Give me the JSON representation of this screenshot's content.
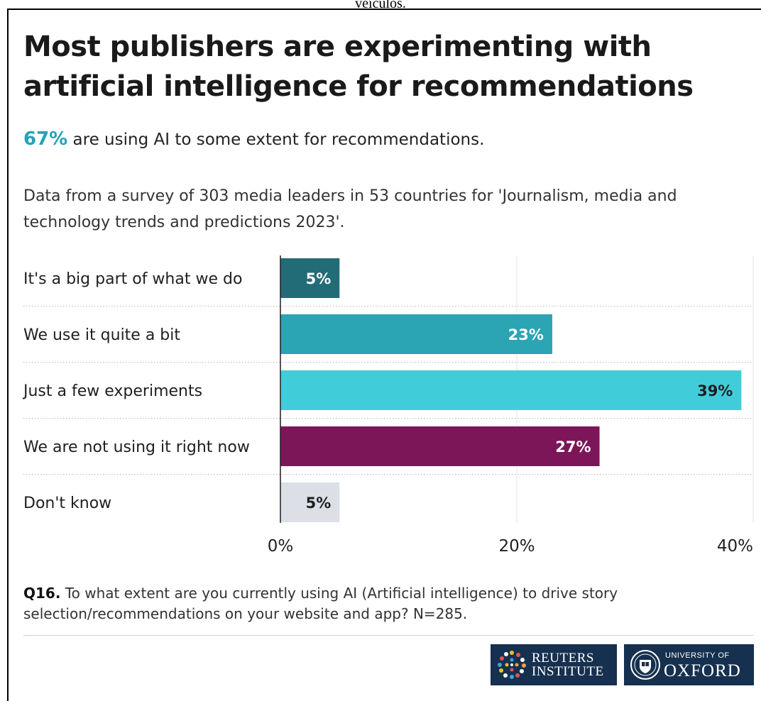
{
  "caption_top": "veículos.",
  "title": "Most publishers are experimenting with artificial intelligence for recommendations",
  "subtitle": {
    "highlight": "67%",
    "text": " are using AI to some extent for recommendations."
  },
  "description": "Data from a survey of 303 media leaders in 53 countries for 'Journalism, media and technology trends and predictions 2023'.",
  "chart_data": {
    "type": "bar",
    "orientation": "horizontal",
    "categories": [
      "It's a big part of what we do",
      "We use it quite a bit",
      "Just a few experiments",
      "We are not using it right now",
      "Don't know"
    ],
    "values": [
      5,
      23,
      39,
      27,
      5
    ],
    "data_labels": [
      "5%",
      "23%",
      "39%",
      "27%",
      "5%"
    ],
    "colors": [
      "#226c77",
      "#2ba4b4",
      "#40cdd9",
      "#7d1658",
      "#dcdfe6"
    ],
    "label_colors": [
      "#ffffff",
      "#ffffff",
      "#1f1f1f",
      "#ffffff",
      "#1f1f1f"
    ],
    "xlim": [
      0,
      40
    ],
    "xticks": [
      0,
      20,
      40
    ],
    "xtick_labels": [
      "0%",
      "20%",
      "40%"
    ],
    "grid": true
  },
  "footnote": {
    "label": "Q16.",
    "text": " To what extent are you currently using AI (Artificial intelligence) to drive story selection/recommendations on your website and app? N=285."
  },
  "logos": {
    "reuters": {
      "line1": "REUTERS",
      "line2": "INSTITUTE"
    },
    "oxford": {
      "small": "UNIVERSITY OF",
      "big": "OXFORD"
    }
  },
  "colors": {
    "logo_bg": "#16304f",
    "accent": "#21a4b8"
  }
}
